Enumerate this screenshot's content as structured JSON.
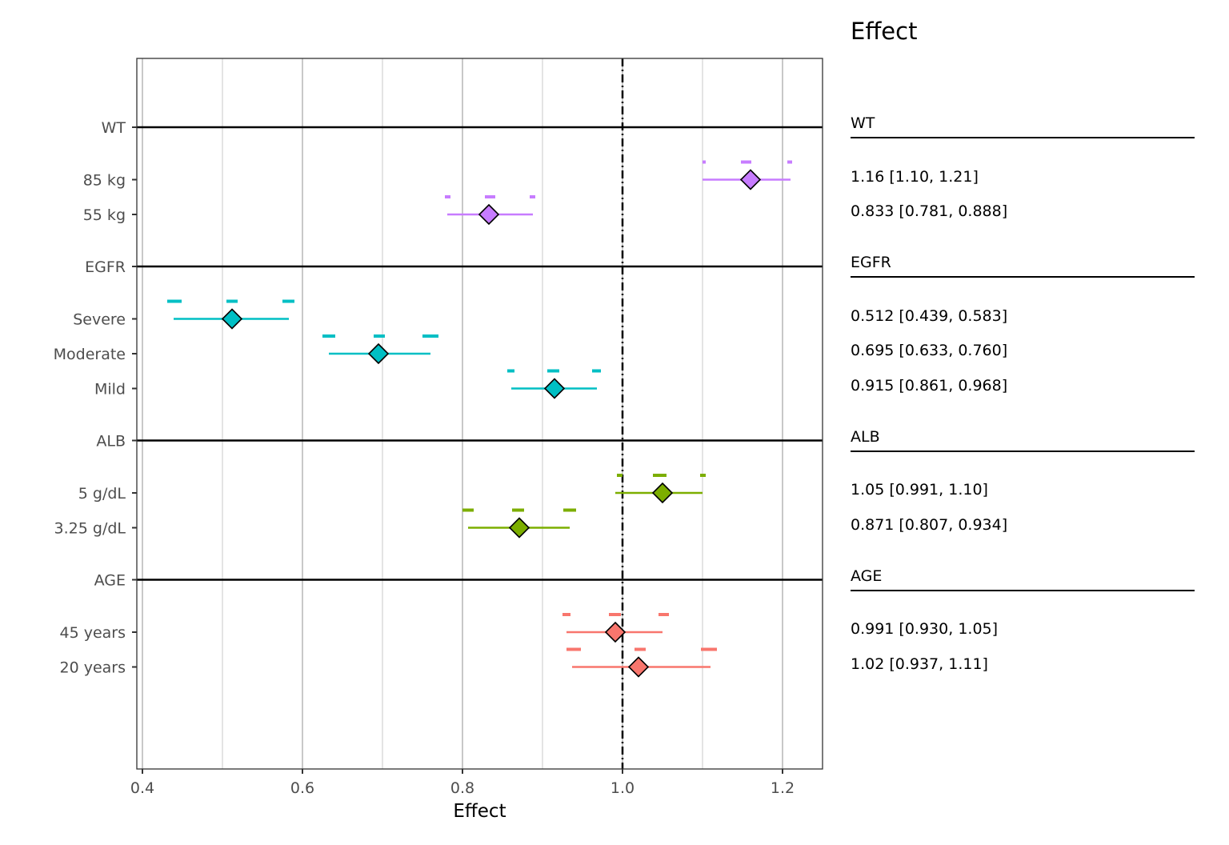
{
  "chart_data": {
    "type": "forest",
    "xlabel": "Effect",
    "xlim": [
      0.39,
      1.25
    ],
    "x_ticks": [
      0.4,
      0.6,
      0.8,
      1.0,
      1.2
    ],
    "x_tick_labels": [
      "0.4",
      "0.6",
      "0.8",
      "1.0",
      "1.2"
    ],
    "reference_line": 1.0,
    "grid": "vertical",
    "side_table_title": "Effect",
    "groups": [
      {
        "name": "WT",
        "color": "#C77CFF",
        "rows": [
          {
            "label": "85 kg",
            "estimate": 1.16,
            "lower": 1.1,
            "upper": 1.21,
            "text": "1.16 [1.10, 1.21]",
            "sim_lower": [
              1.1,
              1.104
            ],
            "sim_mid": [
              1.148,
              1.161
            ],
            "sim_upper": [
              1.206,
              1.212
            ]
          },
          {
            "label": "55 kg",
            "estimate": 0.833,
            "lower": 0.781,
            "upper": 0.888,
            "text": "0.833 [0.781, 0.888]",
            "sim_lower": [
              0.778,
              0.785
            ],
            "sim_mid": [
              0.828,
              0.841
            ],
            "sim_upper": [
              0.884,
              0.891
            ]
          }
        ]
      },
      {
        "name": "EGFR",
        "color": "#00BFC4",
        "rows": [
          {
            "label": "Severe",
            "estimate": 0.512,
            "lower": 0.439,
            "upper": 0.583,
            "text": "0.512 [0.439, 0.583]",
            "sim_lower": [
              0.431,
              0.449
            ],
            "sim_mid": [
              0.505,
              0.519
            ],
            "sim_upper": [
              0.575,
              0.59
            ]
          },
          {
            "label": "Moderate",
            "estimate": 0.695,
            "lower": 0.633,
            "upper": 0.76,
            "text": "0.695 [0.633, 0.760]",
            "sim_lower": [
              0.625,
              0.641
            ],
            "sim_mid": [
              0.689,
              0.703
            ],
            "sim_upper": [
              0.75,
              0.77
            ]
          },
          {
            "label": "Mild",
            "estimate": 0.915,
            "lower": 0.861,
            "upper": 0.968,
            "text": "0.915 [0.861, 0.968]",
            "sim_lower": [
              0.856,
              0.865
            ],
            "sim_mid": [
              0.906,
              0.921
            ],
            "sim_upper": [
              0.962,
              0.973
            ]
          }
        ]
      },
      {
        "name": "ALB",
        "color": "#7CAE00",
        "rows": [
          {
            "label": "5 g/dL",
            "estimate": 1.05,
            "lower": 0.991,
            "upper": 1.1,
            "text": "1.05 [0.991, 1.10]",
            "sim_lower": [
              0.993,
              1.0
            ],
            "sim_mid": [
              1.038,
              1.055
            ],
            "sim_upper": [
              1.097,
              1.104
            ]
          },
          {
            "label": "3.25 g/dL",
            "estimate": 0.871,
            "lower": 0.807,
            "upper": 0.934,
            "text": "0.871 [0.807, 0.934]",
            "sim_lower": [
              0.8,
              0.814
            ],
            "sim_mid": [
              0.862,
              0.877
            ],
            "sim_upper": [
              0.926,
              0.942
            ]
          }
        ]
      },
      {
        "name": "AGE",
        "color": "#F8766D",
        "rows": [
          {
            "label": "45 years",
            "estimate": 0.991,
            "lower": 0.93,
            "upper": 1.05,
            "text": "0.991 [0.930, 1.05]",
            "sim_lower": [
              0.925,
              0.935
            ],
            "sim_mid": [
              0.983,
              0.998
            ],
            "sim_upper": [
              1.045,
              1.058
            ]
          },
          {
            "label": "20 years",
            "estimate": 1.02,
            "lower": 0.937,
            "upper": 1.11,
            "text": "1.02 [0.937, 1.11]",
            "sim_lower": [
              0.93,
              0.948
            ],
            "sim_mid": [
              1.015,
              1.029
            ],
            "sim_upper": [
              1.098,
              1.118
            ]
          }
        ]
      }
    ]
  }
}
